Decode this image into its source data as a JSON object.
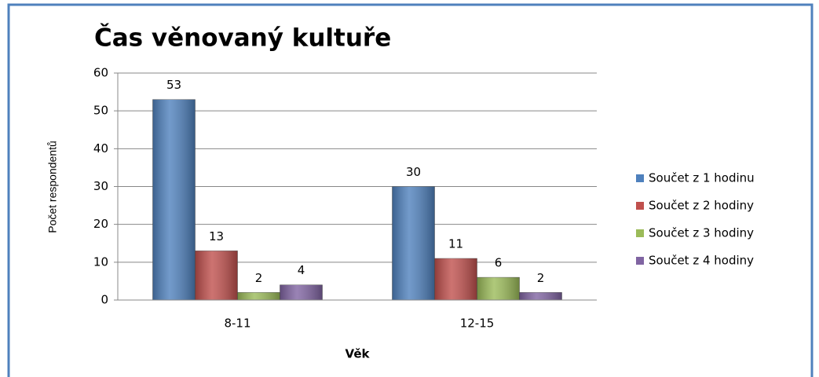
{
  "chart_data": {
    "type": "bar",
    "title": "Čas věnovaný kultuře",
    "x_label": "Věk",
    "y_label": "Počet respondentů",
    "categories": [
      "8-11",
      "12-15"
    ],
    "series": [
      {
        "name": "Součet z 1 hodinu",
        "color": "#4f81bd",
        "values": [
          53,
          30
        ]
      },
      {
        "name": "Součet z 2 hodiny",
        "color": "#c0504d",
        "values": [
          13,
          11
        ]
      },
      {
        "name": "Součet z 3 hodiny",
        "color": "#9bbb59",
        "values": [
          2,
          6
        ]
      },
      {
        "name": "Součet z 4 hodiny",
        "color": "#8064a2",
        "values": [
          4,
          2
        ]
      }
    ],
    "ylim": [
      0,
      60
    ],
    "yticks": [
      0,
      10,
      20,
      30,
      40,
      50,
      60
    ],
    "grid": true,
    "legend": "right"
  }
}
